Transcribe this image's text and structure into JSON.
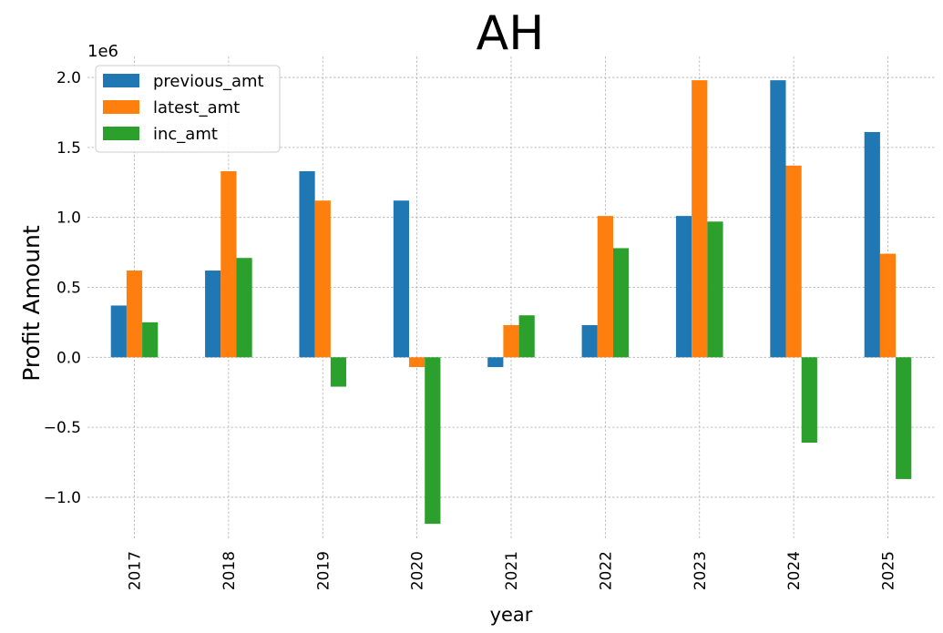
{
  "chart_data": {
    "type": "bar",
    "title": "AH",
    "xlabel": "year",
    "ylabel": "Profit Amount",
    "y_scale_label": "1e6",
    "categories": [
      "2017",
      "2018",
      "2019",
      "2020",
      "2021",
      "2022",
      "2023",
      "2024",
      "2025"
    ],
    "series": [
      {
        "name": "previous_amt",
        "color": "#1f77b4",
        "values": [
          370000,
          620000,
          1330000,
          1120000,
          -70000,
          230000,
          1010000,
          1980000,
          1610000
        ]
      },
      {
        "name": "latest_amt",
        "color": "#ff7f0e",
        "values": [
          620000,
          1330000,
          1120000,
          -70000,
          230000,
          1010000,
          1980000,
          1370000,
          740000
        ]
      },
      {
        "name": "inc_amt",
        "color": "#2ca02c",
        "values": [
          250000,
          710000,
          -210000,
          -1190000,
          300000,
          780000,
          970000,
          -610000,
          -870000
        ]
      }
    ],
    "ylim": [
      -1300000.0,
      2150000.0
    ],
    "yticks": [
      -1000000,
      -500000,
      0,
      500000,
      1000000,
      1500000,
      2000000
    ],
    "ytick_labels": [
      "−1.0",
      "−0.5",
      "0.0",
      "0.5",
      "1.0",
      "1.5",
      "2.0"
    ],
    "grid": true,
    "legend_position": "upper-left"
  }
}
